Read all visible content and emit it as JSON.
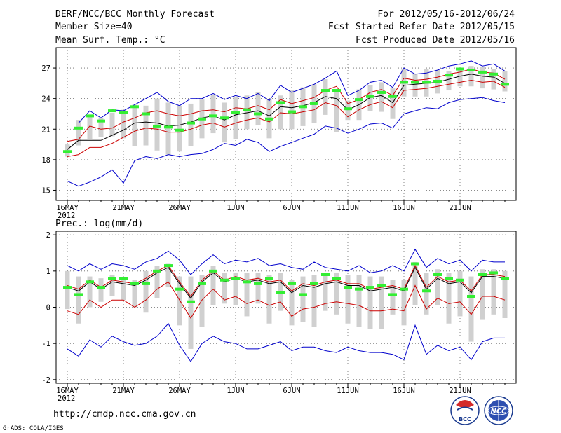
{
  "header": {
    "title": "DERF/NCC/BCC Monthly Forecast",
    "member_size": "Member Size=40",
    "variable": "Mean Surf. Temp.: °C",
    "forecast_period": "For 2012/05/16-2012/06/24",
    "started_refer": "Fcst Started Refer Date 2012/05/15",
    "produced": "Fcst Produced Date 2012/05/16"
  },
  "footer": {
    "url": "http://cmdp.ncc.cma.gov.cn",
    "grads": "GrADS: COLA/IGES",
    "logo_left_text": "BCC",
    "logo_right_text": "NCC"
  },
  "colors": {
    "ensemble_mean": "#000000",
    "std_band": "#cc0000",
    "extremes": "#0000cc",
    "members_bar": "#d0d0d0",
    "observation": "#33ee33"
  },
  "chart_data": [
    {
      "type": "line",
      "title": "Mean Surf. Temp.: °C",
      "year_label": "2012",
      "x_tick_labels": [
        "16MAY",
        "21MAY",
        "26MAY",
        "1JUN",
        "6JUN",
        "11JUN",
        "16JUN",
        "21JUN"
      ],
      "x_tick_days": [
        1,
        6,
        11,
        16,
        21,
        26,
        31,
        36
      ],
      "days": 40,
      "ylim": [
        14,
        29
      ],
      "yticks": [
        15,
        18,
        21,
        24,
        27
      ],
      "grid": true,
      "series": [
        {
          "name": "max",
          "color": "#0000cc",
          "values": [
            21.6,
            21.6,
            22.8,
            22.1,
            22.9,
            22.8,
            23.4,
            24.0,
            24.6,
            23.7,
            23.3,
            24.0,
            24.0,
            24.5,
            23.9,
            24.3,
            24.0,
            24.5,
            23.8,
            25.3,
            24.6,
            25.0,
            25.4,
            26.0,
            26.7,
            24.3,
            24.8,
            25.6,
            25.8,
            25.1,
            27.0,
            26.4,
            26.5,
            26.8,
            27.2,
            27.4,
            27.7,
            27.2,
            27.4,
            26.7
          ]
        },
        {
          "name": "mean+std",
          "color": "#cc0000",
          "values": [
            19.8,
            20.0,
            21.3,
            21.0,
            21.1,
            21.7,
            22.1,
            22.6,
            22.8,
            22.5,
            22.3,
            22.5,
            22.8,
            22.9,
            22.7,
            23.1,
            23.0,
            23.3,
            22.9,
            23.9,
            23.5,
            23.8,
            24.1,
            24.8,
            25.2,
            23.5,
            23.9,
            24.6,
            24.9,
            24.3,
            26.0,
            25.8,
            25.9,
            26.1,
            26.4,
            26.6,
            26.9,
            26.6,
            26.5,
            25.9
          ]
        },
        {
          "name": "mean",
          "color": "#000000",
          "values": [
            19.0,
            19.9,
            19.9,
            19.9,
            20.4,
            20.9,
            21.6,
            21.7,
            21.6,
            21.3,
            21.4,
            21.7,
            22.1,
            22.3,
            21.9,
            22.4,
            22.6,
            22.8,
            22.3,
            23.2,
            23.1,
            23.3,
            23.6,
            24.2,
            24.0,
            22.9,
            23.4,
            24.1,
            24.3,
            23.6,
            25.3,
            25.4,
            25.5,
            25.6,
            25.9,
            26.2,
            26.4,
            26.2,
            26.1,
            25.5
          ]
        },
        {
          "name": "mean-std",
          "color": "#cc0000",
          "values": [
            18.3,
            18.5,
            19.2,
            19.2,
            19.6,
            20.2,
            20.8,
            21.1,
            21.0,
            20.7,
            20.7,
            21.0,
            21.4,
            21.6,
            21.2,
            21.6,
            21.9,
            22.1,
            21.7,
            22.6,
            22.5,
            22.7,
            22.9,
            23.6,
            23.3,
            22.2,
            22.9,
            23.4,
            23.7,
            23.1,
            24.8,
            24.9,
            25.0,
            25.2,
            25.4,
            25.6,
            25.8,
            25.6,
            25.7,
            25.1
          ]
        },
        {
          "name": "min",
          "color": "#0000cc",
          "values": [
            15.9,
            15.4,
            15.8,
            16.3,
            17.0,
            15.7,
            17.9,
            18.3,
            18.1,
            18.5,
            18.3,
            18.5,
            18.6,
            19.0,
            19.6,
            19.4,
            20.0,
            19.7,
            18.8,
            19.3,
            19.7,
            20.1,
            20.5,
            21.3,
            21.1,
            20.6,
            21.0,
            21.5,
            21.6,
            21.1,
            22.5,
            22.8,
            23.1,
            23.0,
            23.6,
            23.9,
            24.0,
            24.1,
            23.8,
            23.6
          ]
        }
      ],
      "member_range": {
        "lo": [
          18.3,
          19.4,
          20.0,
          20.2,
          20.3,
          20.1,
          19.3,
          19.4,
          18.9,
          18.5,
          18.8,
          19.3,
          20.1,
          20.6,
          19.7,
          20.0,
          21.0,
          21.4,
          20.1,
          21.0,
          21.0,
          21.3,
          21.6,
          22.4,
          20.7,
          21.9,
          21.9,
          22.8,
          22.7,
          22.0,
          24.2,
          24.2,
          24.2,
          24.5,
          24.8,
          25.2,
          25.2,
          25.0,
          24.9,
          24.7
        ],
        "hi": [
          19.5,
          21.9,
          22.4,
          22.1,
          22.6,
          22.9,
          23.4,
          23.3,
          24.0,
          23.6,
          23.3,
          23.5,
          23.9,
          24.4,
          23.6,
          24.2,
          24.3,
          24.6,
          23.9,
          24.3,
          24.8,
          25.1,
          25.4,
          25.9,
          24.7,
          23.8,
          24.9,
          25.3,
          25.6,
          25.0,
          26.9,
          26.4,
          26.9,
          26.8,
          26.7,
          27.0,
          27.2,
          27.1,
          26.9,
          26.7
        ]
      },
      "observed": [
        18.8,
        21.1,
        22.3,
        21.8,
        22.8,
        22.6,
        23.2,
        22.5,
        21.3,
        21.2,
        20.9,
        21.6,
        22.0,
        22.3,
        22.1,
        22.6,
        22.9,
        22.5,
        22.0,
        23.6,
        22.7,
        23.2,
        23.5,
        24.8,
        24.8,
        23.0,
        23.9,
        24.2,
        24.6,
        24.2,
        25.6,
        25.6,
        25.6,
        25.7,
        26.3,
        26.9,
        26.8,
        26.6,
        26.4,
        25.4
      ]
    },
    {
      "type": "line",
      "title": "Prec.: log(mm/d)",
      "year_label": "2012",
      "x_tick_labels": [
        "16MAY",
        "21MAY",
        "26MAY",
        "1JUN",
        "6JUN",
        "11JUN",
        "16JUN",
        "21JUN"
      ],
      "x_tick_days": [
        1,
        6,
        11,
        16,
        21,
        26,
        31,
        36
      ],
      "days": 40,
      "ylim": [
        -2.1,
        2.1
      ],
      "yticks": [
        -2,
        -1,
        0,
        1,
        2
      ],
      "grid": true,
      "series": [
        {
          "name": "max",
          "color": "#0000cc",
          "values": [
            1.15,
            1.0,
            1.2,
            1.05,
            1.2,
            1.15,
            1.05,
            1.25,
            1.35,
            1.55,
            1.3,
            0.9,
            1.2,
            1.45,
            1.2,
            1.3,
            1.25,
            1.35,
            1.15,
            1.2,
            1.1,
            1.05,
            1.25,
            1.1,
            1.05,
            1.0,
            1.15,
            0.95,
            1.0,
            1.15,
            1.0,
            1.6,
            1.1,
            1.35,
            1.2,
            1.3,
            1.0,
            1.3,
            1.25,
            1.25
          ]
        },
        {
          "name": "mean+std",
          "color": "#cc0000",
          "values": [
            0.6,
            0.5,
            0.75,
            0.55,
            0.75,
            0.7,
            0.65,
            0.8,
            1.0,
            1.15,
            0.7,
            0.3,
            0.75,
            1.0,
            0.75,
            0.85,
            0.75,
            0.8,
            0.7,
            0.75,
            0.45,
            0.65,
            0.6,
            0.7,
            0.75,
            0.65,
            0.65,
            0.5,
            0.55,
            0.6,
            0.5,
            1.15,
            0.55,
            0.85,
            0.7,
            0.75,
            0.45,
            0.9,
            0.9,
            0.85
          ]
        },
        {
          "name": "mean",
          "color": "#000000",
          "values": [
            0.55,
            0.45,
            0.7,
            0.5,
            0.7,
            0.65,
            0.6,
            0.75,
            0.95,
            1.1,
            0.65,
            0.25,
            0.7,
            0.95,
            0.7,
            0.8,
            0.7,
            0.75,
            0.65,
            0.7,
            0.4,
            0.6,
            0.55,
            0.65,
            0.7,
            0.6,
            0.6,
            0.45,
            0.5,
            0.55,
            0.45,
            1.1,
            0.5,
            0.8,
            0.65,
            0.7,
            0.4,
            0.85,
            0.85,
            0.8
          ]
        },
        {
          "name": "mean-std",
          "color": "#cc0000",
          "values": [
            -0.1,
            -0.2,
            0.2,
            0.0,
            0.2,
            0.2,
            0.0,
            0.2,
            0.5,
            0.7,
            0.2,
            -0.3,
            0.2,
            0.5,
            0.2,
            0.3,
            0.1,
            0.2,
            0.05,
            0.15,
            -0.25,
            -0.05,
            0.0,
            0.1,
            0.15,
            0.1,
            0.05,
            -0.1,
            -0.1,
            -0.05,
            -0.1,
            0.6,
            -0.05,
            0.25,
            0.1,
            0.15,
            -0.2,
            0.3,
            0.3,
            0.2
          ]
        },
        {
          "name": "min",
          "color": "#0000cc",
          "values": [
            -1.15,
            -1.35,
            -0.9,
            -1.1,
            -0.8,
            -0.95,
            -1.05,
            -1.0,
            -0.8,
            -0.45,
            -1.05,
            -1.5,
            -1.0,
            -0.8,
            -0.95,
            -1.0,
            -1.15,
            -1.15,
            -1.05,
            -0.95,
            -1.2,
            -1.1,
            -1.1,
            -1.2,
            -1.25,
            -1.1,
            -1.2,
            -1.25,
            -1.25,
            -1.3,
            -1.45,
            -0.5,
            -1.3,
            -1.05,
            -1.2,
            -1.1,
            -1.45,
            -0.95,
            -0.85,
            -0.85
          ]
        }
      ],
      "member_range": {
        "lo": [
          -0.05,
          -0.45,
          0.0,
          0.15,
          0.3,
          0.2,
          0.0,
          -0.15,
          0.25,
          0.55,
          -0.5,
          -1.15,
          -0.55,
          0.05,
          0.1,
          0.05,
          -0.25,
          0.1,
          -0.45,
          -0.1,
          -0.5,
          -0.4,
          -0.55,
          -0.1,
          -0.2,
          -0.45,
          -0.55,
          -0.6,
          -0.6,
          -0.2,
          -0.5,
          0.05,
          -0.2,
          0.05,
          -0.45,
          -0.25,
          -0.95,
          -0.35,
          -0.2,
          -0.3
        ]
      },
      "member_range_hi": [
        1.0,
        0.85,
        0.85,
        0.8,
        0.9,
        0.8,
        0.75,
        1.0,
        1.15,
        1.2,
        0.85,
        0.85,
        0.9,
        1.15,
        0.95,
        0.95,
        0.95,
        0.95,
        0.9,
        0.95,
        0.75,
        0.85,
        0.9,
        0.95,
        0.95,
        0.9,
        0.9,
        0.85,
        0.85,
        0.75,
        0.75,
        1.25,
        0.95,
        1.05,
        0.95,
        1.0,
        0.85,
        1.05,
        1.05,
        1.0
      ],
      "observed": [
        0.55,
        0.35,
        0.7,
        0.55,
        0.8,
        0.8,
        0.65,
        0.65,
        1.0,
        1.15,
        0.5,
        0.15,
        0.65,
        1.0,
        0.75,
        0.8,
        0.7,
        0.65,
        0.8,
        0.4,
        0.65,
        0.35,
        0.65,
        0.9,
        0.8,
        0.55,
        0.5,
        0.55,
        0.6,
        0.35,
        0.5,
        1.2,
        0.45,
        0.9,
        0.8,
        0.75,
        0.3,
        0.9,
        0.95,
        0.8
      ]
    }
  ]
}
